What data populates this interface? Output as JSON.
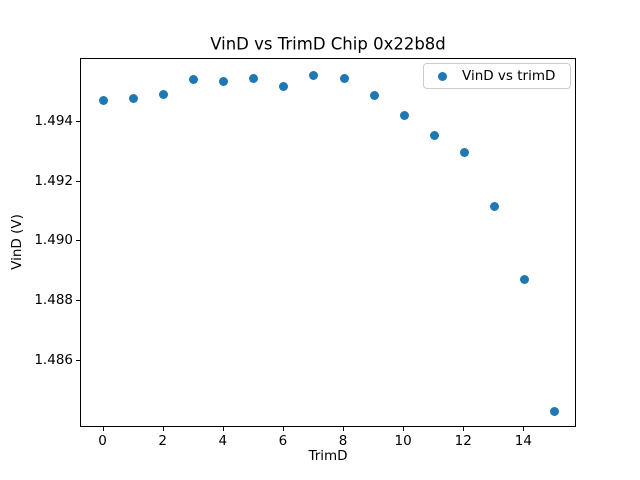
{
  "figure": {
    "background": "#ffffff",
    "text_color": "#000000",
    "spine_color": "#000000",
    "legend_border_color": "#cccccc"
  },
  "chart_data": {
    "type": "scatter",
    "title": "VinD vs TrimD Chip 0x22b8d",
    "xlabel": "TrimD",
    "ylabel": "VinD (V)",
    "x": [
      0,
      1,
      2,
      3,
      4,
      5,
      6,
      7,
      8,
      9,
      10,
      11,
      12,
      13,
      14,
      15
    ],
    "series": [
      {
        "name": "VinD vs trimD",
        "color": "#1f77b4",
        "values": [
          1.4947,
          1.49478,
          1.49489,
          1.49542,
          1.49533,
          1.49545,
          1.49517,
          1.49553,
          1.49543,
          1.49487,
          1.4942,
          1.49353,
          1.49297,
          1.49116,
          1.48873,
          1.48433
        ]
      }
    ],
    "xlim": [
      -0.75,
      15.75
    ],
    "ylim": [
      1.48377,
      1.49609
    ],
    "xtick_values": [
      0,
      2,
      4,
      6,
      8,
      10,
      12,
      14
    ],
    "xtick_labels": [
      "0",
      "2",
      "4",
      "6",
      "8",
      "10",
      "12",
      "14"
    ],
    "ytick_values": [
      1.486,
      1.488,
      1.49,
      1.492,
      1.494
    ],
    "ytick_labels": [
      "1.486",
      "1.488",
      "1.490",
      "1.492",
      "1.494"
    ],
    "grid": false,
    "legend": {
      "location": "upper right",
      "entries": [
        "VinD vs trimD"
      ]
    }
  }
}
